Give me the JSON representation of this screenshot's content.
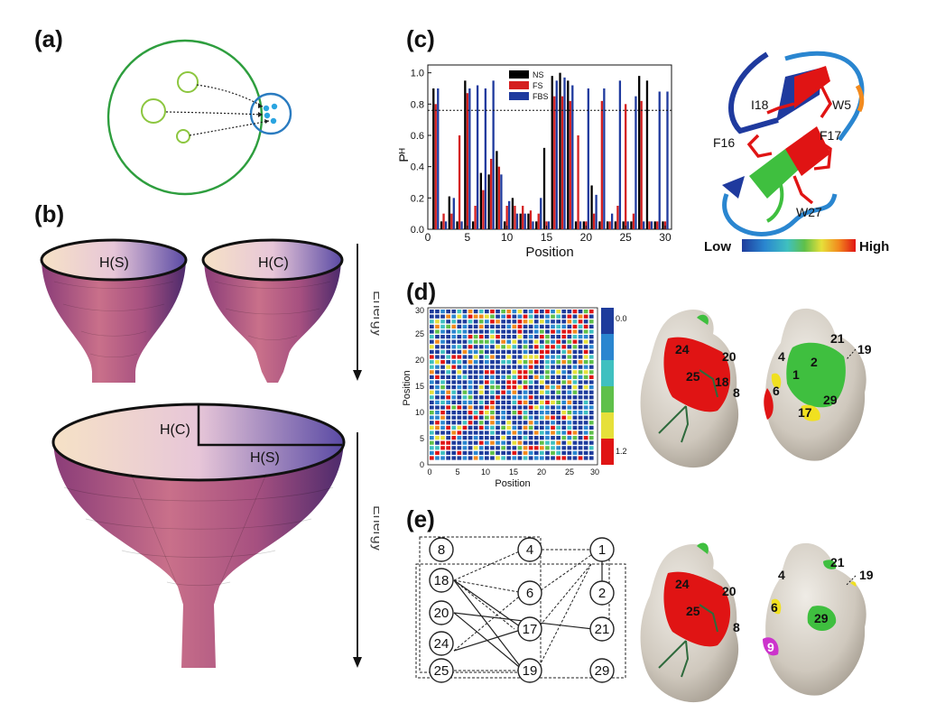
{
  "panels": {
    "a": {
      "label": "(a)"
    },
    "b": {
      "label": "(b)",
      "funnel_small_left": "H(S)",
      "funnel_small_right": "H(C)",
      "funnel_big_c": "H(C)",
      "funnel_big_s": "H(S)",
      "energy_top": "Energy",
      "energy_bottom": "Energy"
    },
    "c": {
      "label": "(c)",
      "residues": [
        "I18",
        "W5",
        "F16",
        "F17",
        "W27"
      ],
      "color_low": "Low",
      "color_high": "High"
    },
    "d": {
      "label": "(d)",
      "scale_top": "0.0",
      "scale_bottom": "1.2",
      "xlabel": "Position",
      "ylabel": "Position",
      "ticks": [
        "0",
        "5",
        "10",
        "15",
        "20",
        "25",
        "30"
      ],
      "surface_left_labels": [
        "24",
        "20",
        "25",
        "18",
        "8"
      ],
      "surface_right_labels": [
        "21",
        "19",
        "4",
        "2",
        "1",
        "6",
        "29",
        "17"
      ]
    },
    "e": {
      "label": "(e)",
      "network_nodes": [
        "8",
        "18",
        "20",
        "24",
        "25",
        "4",
        "6",
        "17",
        "19",
        "1",
        "2",
        "21",
        "29"
      ],
      "surface_left_labels": [
        "24",
        "20",
        "25",
        "8"
      ],
      "surface_right_labels": [
        "21",
        "19",
        "4",
        "6",
        "29",
        "9"
      ]
    }
  },
  "chart_data": [
    {
      "type": "bar",
      "x": [
        1,
        2,
        3,
        4,
        5,
        6,
        7,
        8,
        9,
        10,
        11,
        12,
        13,
        14,
        15,
        16,
        17,
        18,
        19,
        20,
        21,
        22,
        23,
        24,
        25,
        26,
        27,
        28,
        29,
        30
      ],
      "series": [
        {
          "name": "NS",
          "color": "#000000",
          "values": [
            0.9,
            0.05,
            0.21,
            0.05,
            0.95,
            0.05,
            0.36,
            0.35,
            0.5,
            0.05,
            0.2,
            0.1,
            0.1,
            0.05,
            0.52,
            0.98,
            1.0,
            0.95,
            0.05,
            0.05,
            0.28,
            0.05,
            0.05,
            0.05,
            0.05,
            0.05,
            0.98,
            0.95,
            0.05,
            0.05
          ]
        },
        {
          "name": "FS",
          "color": "#d42020",
          "values": [
            0.8,
            0.1,
            0.1,
            0.6,
            0.87,
            0.15,
            0.25,
            0.45,
            0.4,
            0.15,
            0.15,
            0.15,
            0.12,
            0.1,
            0.05,
            0.85,
            0.85,
            0.82,
            0.6,
            0.05,
            0.1,
            0.82,
            0.05,
            0.15,
            0.8,
            0.1,
            0.82,
            0.05,
            0.05,
            0.05
          ]
        },
        {
          "name": "FBS",
          "color": "#1f3a9e",
          "values": [
            0.9,
            0.05,
            0.2,
            0.05,
            0.9,
            0.92,
            0.9,
            0.95,
            0.35,
            0.18,
            0.1,
            0.1,
            0.05,
            0.2,
            0.05,
            0.95,
            0.97,
            0.92,
            0.05,
            0.9,
            0.22,
            0.9,
            0.1,
            0.95,
            0.05,
            0.85,
            0.05,
            0.05,
            0.88,
            0.88
          ]
        }
      ],
      "xlabel": "Position",
      "ylabel": "Pᴴ",
      "xticks": [
        0,
        5,
        10,
        15,
        20,
        25,
        30
      ],
      "yticks": [
        0.0,
        0.2,
        0.4,
        0.6,
        0.8,
        1.0
      ],
      "xlim": [
        0,
        30.8
      ],
      "ylim": [
        0,
        1.05
      ],
      "threshold": 0.76,
      "legend_position": "top-center"
    }
  ],
  "colors": {
    "green_circle": "#2e9e3e",
    "light_green": "#8cc63f",
    "blue_circle": "#2a7bc0",
    "dot_blue": "#2aa4e0",
    "protein_red": "#e01414",
    "protein_green": "#3fbf3f",
    "protein_yellow": "#f0e020",
    "protein_magenta": "#cc33cc",
    "surface_grey": "#d8d2c8"
  }
}
